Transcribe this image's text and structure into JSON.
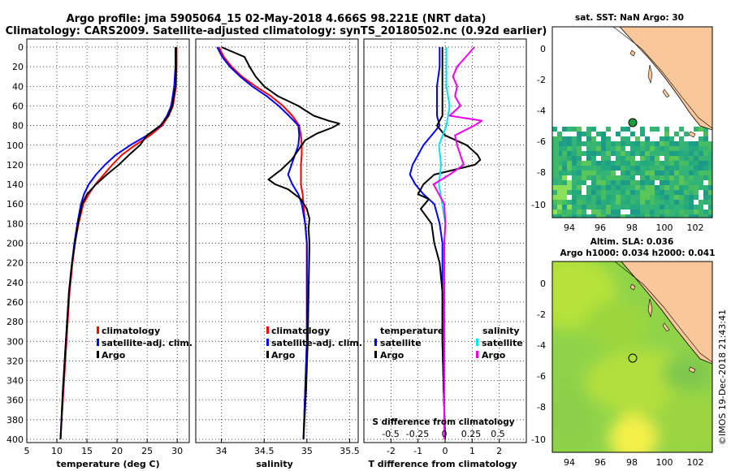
{
  "titles": {
    "line1": "Argo profile: jma 5905064_15 02-May-2018 4.666S 98.221E (NRT data)",
    "line2": "Climatology: CARS2009. Satellite-adjusted climatology: synTS_20180502.nc (0.92d earlier)"
  },
  "colors": {
    "climatology": "#ff0000",
    "satellite": "#0000ff",
    "argo": "#000000",
    "sat_s": "#00e5ee",
    "argo_s": "#ee00ee",
    "land": "#f9c79a"
  },
  "chart_data": [
    {
      "type": "line",
      "name": "temperature",
      "xlabel": "temperature (deg C)",
      "xlim": [
        5,
        32
      ],
      "ylim": [
        400,
        0
      ],
      "xticks": [
        5,
        10,
        15,
        20,
        25,
        30
      ],
      "yticks": [
        0,
        20,
        40,
        60,
        80,
        100,
        120,
        140,
        160,
        180,
        200,
        220,
        240,
        260,
        280,
        300,
        320,
        340,
        360,
        380,
        400
      ],
      "legend": [
        "climatology",
        "satellite-adj. clim.",
        "Argo"
      ],
      "series": [
        {
          "name": "climatology",
          "color": "#ff0000",
          "depth": [
            0,
            20,
            40,
            60,
            70,
            80,
            90,
            100,
            110,
            120,
            130,
            140,
            150,
            160,
            180,
            200,
            220,
            250,
            300,
            350,
            400
          ],
          "values": [
            29.9,
            29.9,
            29.8,
            29.3,
            28.6,
            27.5,
            25.5,
            23.0,
            20.8,
            19.2,
            17.8,
            16.4,
            15.3,
            14.4,
            13.6,
            13.0,
            12.6,
            12.1,
            11.6,
            11.1,
            10.6
          ]
        },
        {
          "name": "satellite-adj. clim.",
          "color": "#0000ff",
          "depth": [
            0,
            20,
            40,
            60,
            70,
            80,
            90,
            100,
            110,
            120,
            130,
            140,
            150,
            160,
            180,
            200,
            220,
            250,
            300,
            350,
            400
          ],
          "values": [
            29.7,
            29.7,
            29.5,
            29.0,
            28.3,
            27.3,
            25.0,
            22.2,
            19.8,
            18.0,
            16.5,
            15.3,
            14.5,
            14.0,
            13.4,
            12.9,
            12.5,
            12.0,
            11.5,
            11.0,
            10.6
          ]
        },
        {
          "name": "Argo",
          "color": "#000000",
          "depth": [
            0,
            20,
            40,
            60,
            70,
            80,
            90,
            100,
            110,
            120,
            130,
            140,
            150,
            160,
            180,
            200,
            220,
            250,
            300,
            350,
            400
          ],
          "values": [
            29.8,
            29.8,
            29.7,
            29.2,
            28.5,
            27.2,
            25.0,
            23.8,
            22.0,
            20.3,
            18.3,
            16.5,
            15.0,
            14.2,
            13.5,
            13.0,
            12.5,
            12.0,
            11.5,
            11.0,
            10.6
          ]
        }
      ]
    },
    {
      "type": "line",
      "name": "salinity",
      "xlabel": "salinity",
      "xlim": [
        33.7,
        35.6
      ],
      "ylim": [
        400,
        0
      ],
      "xticks": [
        34,
        34.5,
        35,
        35.5
      ],
      "legend": [
        "climatology",
        "satellite-adj. clim.",
        "Argo"
      ],
      "series": [
        {
          "name": "climatology",
          "color": "#ff0000",
          "depth": [
            0,
            10,
            20,
            30,
            40,
            50,
            60,
            70,
            80,
            90,
            100,
            110,
            120,
            130,
            140,
            150,
            160,
            180,
            200,
            250,
            300,
            350,
            400
          ],
          "values": [
            33.97,
            34.03,
            34.12,
            34.24,
            34.4,
            34.58,
            34.72,
            34.83,
            34.91,
            34.93,
            34.94,
            34.94,
            34.93,
            34.93,
            34.93,
            34.95,
            34.96,
            34.98,
            35.0,
            35.0,
            35.0,
            34.98,
            34.96
          ]
        },
        {
          "name": "satellite-adj. clim.",
          "color": "#0000ff",
          "depth": [
            0,
            10,
            20,
            30,
            40,
            50,
            60,
            70,
            80,
            90,
            100,
            110,
            120,
            130,
            140,
            150,
            160,
            180,
            200,
            250,
            300,
            350,
            400
          ],
          "values": [
            33.95,
            34.01,
            34.1,
            34.22,
            34.36,
            34.53,
            34.67,
            34.79,
            34.9,
            34.91,
            34.9,
            34.86,
            34.82,
            34.78,
            34.83,
            34.9,
            34.94,
            34.98,
            35.0,
            35.0,
            35.0,
            34.98,
            34.96
          ]
        },
        {
          "name": "Argo",
          "color": "#000000",
          "depth": [
            0,
            10,
            15,
            20,
            30,
            40,
            50,
            60,
            70,
            75,
            78,
            82,
            88,
            95,
            105,
            115,
            125,
            135,
            140,
            145,
            155,
            165,
            175,
            185,
            200,
            250,
            300,
            350,
            400
          ],
          "values": [
            34.0,
            34.27,
            34.3,
            34.33,
            34.4,
            34.5,
            34.66,
            34.9,
            35.08,
            35.25,
            35.38,
            35.3,
            35.12,
            34.98,
            34.9,
            34.82,
            34.7,
            34.55,
            34.63,
            34.78,
            34.93,
            35.0,
            35.03,
            35.02,
            35.03,
            35.02,
            35.01,
            34.99,
            34.96
          ]
        }
      ]
    },
    {
      "type": "line",
      "name": "difference",
      "xlabel": "T difference from climatology",
      "x2label": "S difference from climatology",
      "xlim": [
        -3,
        3.0
      ],
      "ylim": [
        400,
        0
      ],
      "xticks": [
        -2,
        -1,
        0,
        1,
        2
      ],
      "x2ticks": [
        "-0.5",
        "-0.25",
        "0",
        "0.25",
        "0.5"
      ],
      "legend_t_title": "temperature",
      "legend_s_title": "salinity",
      "legend_t": [
        "satellite",
        "Argo"
      ],
      "legend_s": [
        "satellite",
        "Argo"
      ],
      "series": [
        {
          "name": "T satellite",
          "color": "#0000ff",
          "depth": [
            0,
            20,
            40,
            60,
            70,
            80,
            90,
            100,
            110,
            120,
            130,
            140,
            150,
            160,
            180,
            200,
            250,
            300,
            350,
            400
          ],
          "values": [
            -0.2,
            -0.2,
            -0.3,
            -0.3,
            -0.3,
            -0.2,
            -0.5,
            -0.8,
            -1.0,
            -1.2,
            -1.3,
            -1.1,
            -0.8,
            -0.4,
            -0.2,
            -0.1,
            -0.1,
            -0.1,
            -0.05,
            0.0
          ]
        },
        {
          "name": "T Argo",
          "color": "#000000",
          "depth": [
            0,
            20,
            40,
            60,
            70,
            80,
            90,
            100,
            110,
            115,
            120,
            130,
            140,
            150,
            155,
            165,
            180,
            200,
            220,
            250,
            300,
            350,
            400
          ],
          "values": [
            -0.1,
            -0.1,
            -0.1,
            -0.1,
            -0.1,
            -0.3,
            0.0,
            0.8,
            1.2,
            1.3,
            1.1,
            -0.4,
            -0.8,
            -1.0,
            -0.6,
            -0.9,
            -0.5,
            -0.4,
            -0.2,
            -0.1,
            -0.1,
            -0.05,
            0.0
          ]
        },
        {
          "name": "S satellite",
          "color": "#00e5ee",
          "depth": [
            0,
            20,
            40,
            60,
            80,
            100,
            120,
            140,
            160,
            180,
            200,
            250,
            300,
            350,
            400
          ],
          "values": [
            0.02,
            0.02,
            0.02,
            0.05,
            0.02,
            -0.05,
            -0.03,
            -0.05,
            -0.02,
            0.01,
            0.0,
            0.0,
            0.0,
            0.0,
            0.0
          ]
        },
        {
          "name": "S Argo",
          "color": "#ee00ee",
          "depth": [
            0,
            10,
            20,
            30,
            40,
            50,
            60,
            70,
            75,
            80,
            90,
            100,
            110,
            120,
            130,
            140,
            150,
            160,
            180,
            200,
            250,
            300,
            350,
            400
          ],
          "values": [
            0.28,
            0.2,
            0.12,
            0.08,
            0.12,
            0.1,
            0.15,
            0.05,
            0.35,
            0.28,
            0.1,
            0.12,
            0.15,
            0.18,
            0.05,
            -0.1,
            -0.05,
            0.0,
            0.01,
            0.0,
            0.0,
            0.0,
            0.0,
            0.0
          ]
        }
      ]
    }
  ],
  "map_sst": {
    "title": "sat. SST: NaN Argo: 30",
    "xticks": [
      "94",
      "96",
      "98",
      "100",
      "102"
    ],
    "yticks": [
      "0",
      "-2",
      "-4",
      "-6",
      "-8",
      "-10"
    ]
  },
  "map_sla": {
    "title1": "Altim. SLA: 0.036",
    "title2": "Argo h1000: 0.034 h2000: 0.041",
    "xticks": [
      "94",
      "96",
      "98",
      "100",
      "102"
    ],
    "yticks": [
      "0",
      "-2",
      "-4",
      "-6",
      "-8",
      "-10"
    ]
  },
  "credit": "©IMOS 19-Dec-2018 21:43:41"
}
